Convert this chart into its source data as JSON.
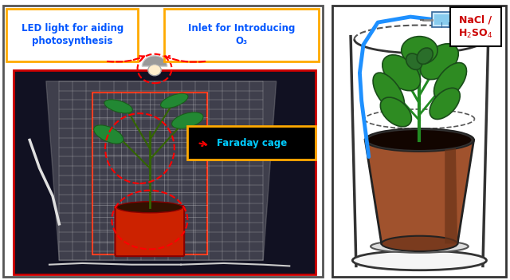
{
  "fig_width": 6.4,
  "fig_height": 3.51,
  "dpi": 100,
  "bg_color": "#ffffff",
  "left_panel": {
    "photo_bg": "#111122",
    "border_color": "#cc0000",
    "label_led": "LED light for aiding\nphotosynthesis",
    "label_inlet": "Inlet for Introducing\nO₃",
    "label_faraday": "Faraday cage",
    "label_color_led": "#0055ff",
    "label_color_inlet": "#0055ff",
    "label_color_faraday": "#00ccff",
    "box_color_led": "#ffaa00",
    "box_color_inlet": "#ffaa00",
    "box_color_faraday": "#ffaa00",
    "box_bg_led": "#ffffff",
    "box_bg_inlet": "#ffffff",
    "box_bg_faraday": "#000000",
    "dashed_color": "#ff0000"
  },
  "right_panel": {
    "bg_color": "#ffffff",
    "border_color": "#000000",
    "pot_color": "#a0522d",
    "pot_dark": "#7a3b1e",
    "soil_color": "#120500",
    "plant_stem": "#228b22",
    "plant_leaf": "#2e8b22",
    "tube_color": "#1e90ff",
    "label_nacl_line1": "NaCl /",
    "label_nacl_line2": "H$_2$SO$_4$",
    "label_color_nacl": "#cc0000",
    "box_bg_nacl": "#ffffff",
    "box_border_nacl": "#000000"
  }
}
